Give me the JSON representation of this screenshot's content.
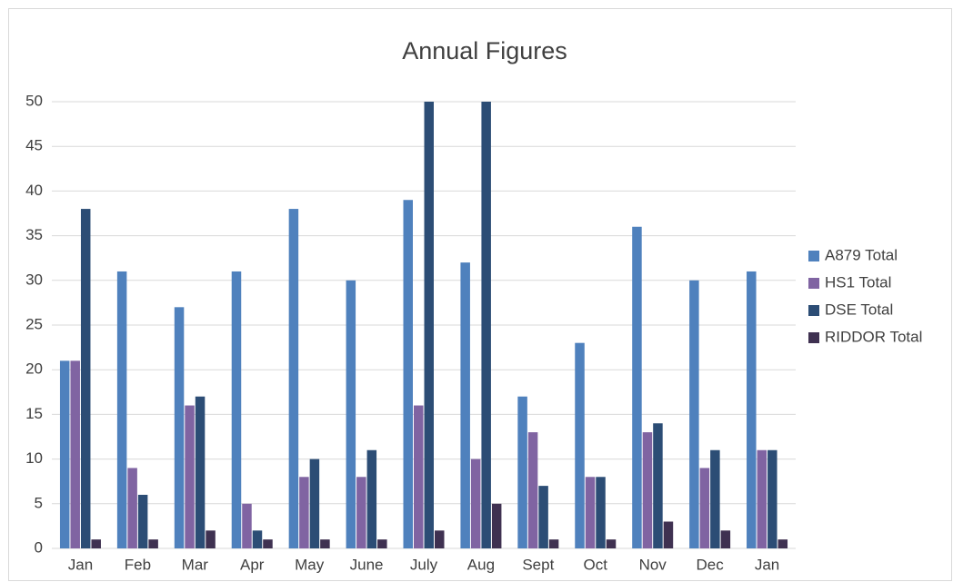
{
  "chart_data": {
    "type": "bar",
    "title": "Annual Figures",
    "categories": [
      "Jan",
      "Feb",
      "Mar",
      "Apr",
      "May",
      "June",
      "July",
      "Aug",
      "Sept",
      "Oct",
      "Nov",
      "Dec",
      "Jan"
    ],
    "series": [
      {
        "name": "A879 Total",
        "color": "#4f81bd",
        "values": [
          21,
          31,
          27,
          31,
          38,
          30,
          39,
          32,
          17,
          23,
          36,
          30,
          31
        ]
      },
      {
        "name": "HS1 Total",
        "color": "#8064a2",
        "values": [
          21,
          9,
          16,
          5,
          8,
          8,
          16,
          10,
          13,
          8,
          13,
          9,
          11
        ]
      },
      {
        "name": "DSE Total",
        "color": "#2c4d75",
        "values": [
          38,
          6,
          17,
          2,
          10,
          11,
          50,
          50,
          7,
          8,
          14,
          11,
          11
        ]
      },
      {
        "name": "RIDDOR Total",
        "color": "#3f3151",
        "values": [
          1,
          1,
          2,
          1,
          1,
          1,
          2,
          5,
          1,
          1,
          3,
          2,
          1
        ]
      }
    ],
    "ylim": [
      0,
      50
    ],
    "yticks": [
      0,
      5,
      10,
      15,
      20,
      25,
      30,
      35,
      40,
      45,
      50
    ],
    "grid": true,
    "legend": "right"
  }
}
